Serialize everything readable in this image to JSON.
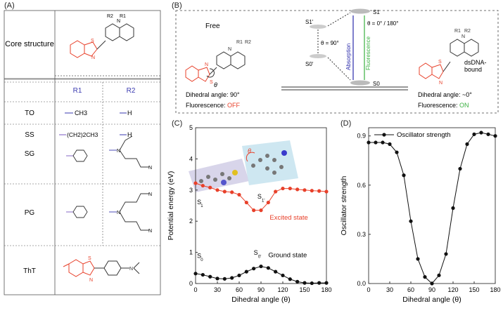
{
  "panels": {
    "a": {
      "label": "(A)",
      "core_label": "Core structure",
      "core_r1": "R1",
      "core_r2": "R2",
      "col_r1": "R1",
      "col_r2": "R2",
      "rows": [
        {
          "name": "TO",
          "r1": "CH3",
          "r2": "H"
        },
        {
          "name": "SS",
          "r1": "(CH2)2CH3",
          "r2": "H"
        },
        {
          "name": "SG",
          "r1": "",
          "r2": ""
        },
        {
          "name": "PG",
          "r1": "",
          "r2": ""
        },
        {
          "name": "ThT",
          "r1": "",
          "r2": ""
        }
      ]
    },
    "b": {
      "label": "(B)",
      "free": "Free",
      "free_dihedral": "Dihedral angle: 90°",
      "fluor_prefix": "Fluorescence:",
      "fluor_off": "OFF",
      "fluor_on": "ON",
      "bound": "dsDNA-\nbound",
      "bound_dihedral": "Dihedral angle: ~0°",
      "theta_mid": "θ = 90°",
      "theta_top": "θ = 0° / 180°",
      "absorption": "Absorption",
      "fluorescence": "Fluorescence",
      "s1": "S1",
      "s0": "S0",
      "s1p": "S1'",
      "s0p": "S0'",
      "theta": "θ"
    },
    "c": {
      "label": "(C)",
      "excited": "Excited state",
      "ground": "Ground state"
    },
    "d": {
      "label": "(D)"
    }
  },
  "chart_data": [
    {
      "type": "line",
      "xlabel": "Dihedral angle (θ)",
      "ylabel": "Potential energy (eV)",
      "xlim": [
        0,
        180
      ],
      "ylim": [
        0,
        5
      ],
      "xticks": [
        0,
        30,
        60,
        90,
        120,
        150,
        180
      ],
      "yticks": [
        0,
        1,
        2,
        3,
        4,
        5
      ],
      "series": [
        {
          "name": "S1",
          "color": "#e8402a",
          "x": [
            0,
            10,
            20,
            30,
            40,
            50,
            60,
            70,
            80,
            90,
            100,
            110,
            120,
            130,
            140,
            150,
            160,
            170,
            180
          ],
          "y": [
            3.22,
            3.14,
            3.08,
            3.0,
            2.95,
            2.93,
            2.85,
            2.6,
            2.35,
            2.35,
            2.6,
            2.95,
            3.05,
            3.05,
            3.02,
            3.0,
            2.98,
            2.97,
            2.95
          ]
        },
        {
          "name": "S0",
          "color": "#111111",
          "x": [
            0,
            10,
            20,
            30,
            40,
            50,
            60,
            70,
            80,
            90,
            100,
            110,
            120,
            130,
            140,
            150,
            160,
            170,
            180
          ],
          "y": [
            0.32,
            0.28,
            0.22,
            0.16,
            0.15,
            0.18,
            0.26,
            0.38,
            0.48,
            0.55,
            0.5,
            0.38,
            0.26,
            0.14,
            0.06,
            0.02,
            0.01,
            0.02,
            0.02
          ]
        }
      ],
      "annotations": [
        "S1",
        "S1'",
        "S0",
        "S0'"
      ]
    },
    {
      "type": "line",
      "xlabel": "Dihedral angle (θ)",
      "ylabel": "Oscillator strength",
      "xlim": [
        0,
        180
      ],
      "ylim": [
        0,
        0.95
      ],
      "xticks": [
        0,
        30,
        60,
        90,
        120,
        150,
        180
      ],
      "yticks": [
        "0.0",
        "0.3",
        "0.6",
        "0.9"
      ],
      "legend": "top-left",
      "series": [
        {
          "name": "Oscillator strength",
          "color": "#111111",
          "x": [
            0,
            10,
            20,
            30,
            40,
            50,
            60,
            70,
            80,
            90,
            100,
            110,
            120,
            130,
            140,
            150,
            160,
            170,
            180
          ],
          "y": [
            0.86,
            0.86,
            0.86,
            0.85,
            0.8,
            0.66,
            0.38,
            0.15,
            0.04,
            0.0,
            0.05,
            0.18,
            0.46,
            0.7,
            0.85,
            0.91,
            0.92,
            0.91,
            0.9
          ]
        }
      ]
    }
  ]
}
